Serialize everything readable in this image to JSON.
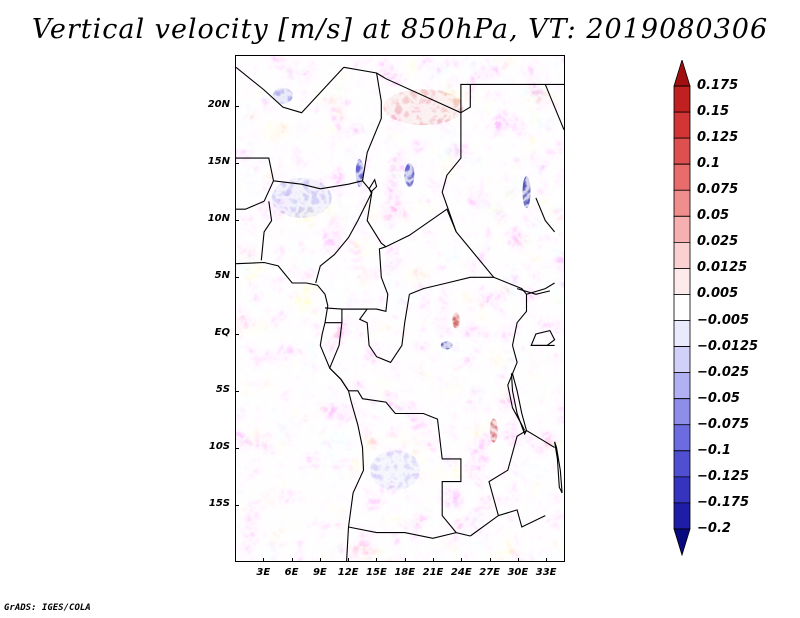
{
  "title": "Vertical velocity [m/s] at 850hPa, VT: 2019080306",
  "credit": "GrADS: IGES/COLA",
  "lat_labels": [
    "20N",
    "15N",
    "10N",
    "5N",
    "EQ",
    "5S",
    "10S",
    "15S"
  ],
  "lat_values": [
    20,
    15,
    10,
    5,
    0,
    -5,
    -10,
    -15
  ],
  "lon_labels": [
    "3E",
    "6E",
    "9E",
    "12E",
    "15E",
    "18E",
    "21E",
    "24E",
    "27E",
    "30E",
    "33E"
  ],
  "lon_values": [
    3,
    6,
    9,
    12,
    15,
    18,
    21,
    24,
    27,
    30,
    33
  ],
  "map_extent": {
    "lon_min": 0,
    "lon_max": 35,
    "lat_min": -20,
    "lat_max": 24.5
  },
  "colorbar": {
    "labels": [
      "0.175",
      "0.15",
      "0.125",
      "0.1",
      "0.075",
      "0.05",
      "0.025",
      "0.0125",
      "0.005",
      "−0.005",
      "−0.0125",
      "−0.025",
      "−0.05",
      "−0.075",
      "−0.1",
      "−0.125",
      "−0.175",
      "−0.2"
    ],
    "colors": [
      "#a01010",
      "#c02020",
      "#d13535",
      "#de5050",
      "#e86c6c",
      "#f08e8e",
      "#f6b0b0",
      "#fad0d0",
      "#fdeaea",
      "#ffffff",
      "#eaeafd",
      "#d0d0f8",
      "#b0b0f2",
      "#8e8eea",
      "#6c6ce0",
      "#4f4fd2",
      "#3434bf",
      "#1d1da8",
      "#0a0a80"
    ]
  },
  "colors": {
    "positive": "#dc3c3c",
    "negative": "#3c3cdc",
    "boundary": "#000000"
  }
}
